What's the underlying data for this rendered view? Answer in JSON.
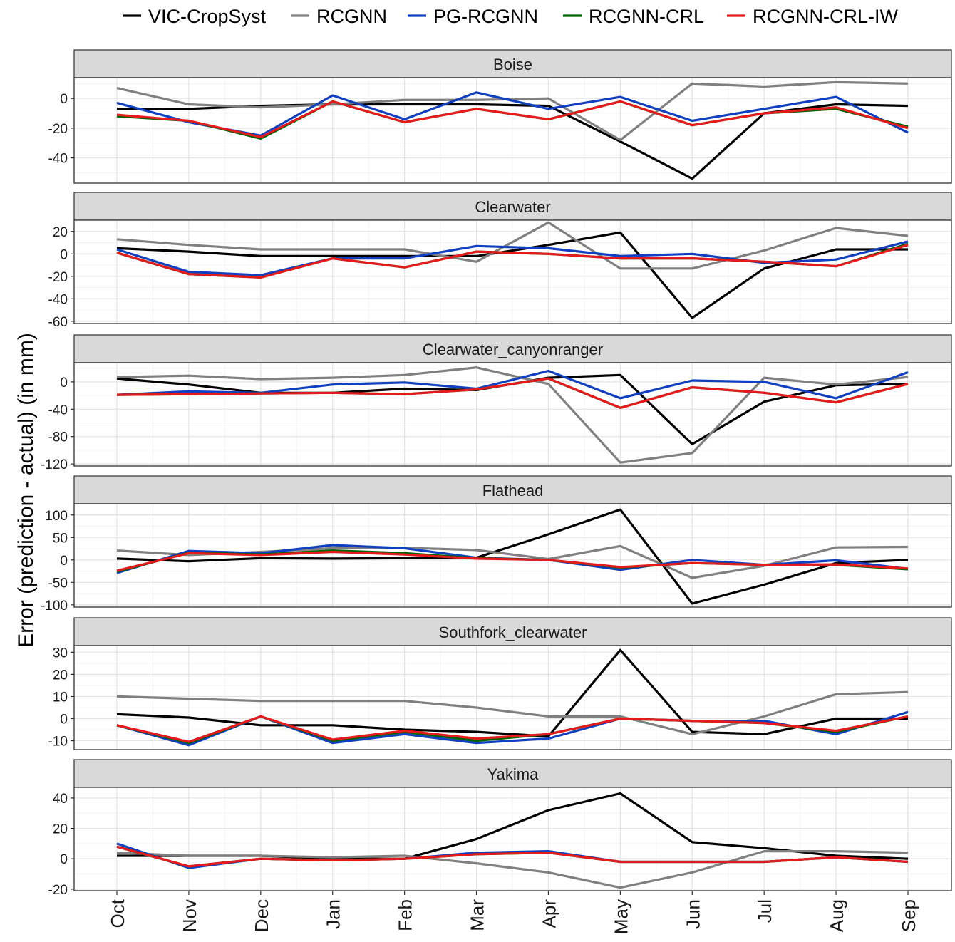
{
  "chart_data": {
    "type": "line",
    "ylabel": "Error (prediction - actual) (in mm)",
    "xlabel": "",
    "categories": [
      "Oct",
      "Nov",
      "Dec",
      "Jan",
      "Feb",
      "Mar",
      "Apr",
      "May",
      "Jun",
      "Jul",
      "Aug",
      "Sep"
    ],
    "legend": {
      "position": "top",
      "entries": [
        {
          "name": "VIC-CropSyst",
          "color": "#000000"
        },
        {
          "name": "RCGNN",
          "color": "#808080"
        },
        {
          "name": "PG-RCGNN",
          "color": "#1040c0"
        },
        {
          "name": "RCGNN-CRL",
          "color": "#006400"
        },
        {
          "name": "RCGNN-CRL-IW",
          "color": "#e41a1c"
        }
      ]
    },
    "panels": [
      {
        "title": "Boise",
        "ylim": [
          -57,
          14
        ],
        "yticks": [
          0,
          -20,
          -40
        ],
        "series": [
          {
            "name": "VIC-CropSyst",
            "values": [
              -7,
              -7,
              -5,
              -4,
              -4,
              -4,
              -5,
              -29,
              -54,
              -10,
              -4,
              -5
            ]
          },
          {
            "name": "RCGNN",
            "values": [
              7,
              -4,
              -6,
              -4,
              -1,
              -1,
              0,
              -28,
              10,
              8,
              11,
              10
            ]
          },
          {
            "name": "PG-RCGNN",
            "values": [
              -3,
              -16,
              -25,
              2,
              -14,
              4,
              -7,
              1,
              -15,
              -7,
              1,
              -23
            ]
          },
          {
            "name": "RCGNN-CRL",
            "values": [
              -12,
              -15,
              -27,
              -2,
              -16,
              -7,
              -14,
              -2,
              -18,
              -10,
              -7,
              -19
            ]
          },
          {
            "name": "RCGNN-CRL-IW",
            "values": [
              -11,
              -15,
              -26,
              -2,
              -16,
              -7,
              -14,
              -2,
              -18,
              -10,
              -6,
              -20
            ]
          }
        ]
      },
      {
        "title": "Clearwater",
        "ylim": [
          -62,
          30
        ],
        "yticks": [
          20,
          0,
          -20,
          -40,
          -60
        ],
        "series": [
          {
            "name": "VIC-CropSyst",
            "values": [
              5,
              2,
              -2,
              -2,
              -2,
              -2,
              8,
              19,
              -57,
              -13,
              4,
              4
            ]
          },
          {
            "name": "RCGNN",
            "values": [
              13,
              8,
              4,
              4,
              4,
              -7,
              28,
              -13,
              -13,
              3,
              23,
              16
            ]
          },
          {
            "name": "PG-RCGNN",
            "values": [
              4,
              -16,
              -19,
              -4,
              -4,
              7,
              5,
              -2,
              0,
              -8,
              -5,
              11
            ]
          },
          {
            "name": "RCGNN-CRL",
            "values": [
              1,
              -18,
              -21,
              -4,
              -12,
              2,
              0,
              -4,
              -4,
              -7,
              -11,
              9
            ]
          },
          {
            "name": "RCGNN-CRL-IW",
            "values": [
              1,
              -18,
              -21,
              -4,
              -12,
              2,
              0,
              -4,
              -4,
              -7,
              -11,
              8
            ]
          }
        ]
      },
      {
        "title": "Clearwater_canyonranger",
        "ylim": [
          -123,
          28
        ],
        "yticks": [
          0,
          -40,
          -80,
          -120
        ],
        "series": [
          {
            "name": "VIC-CropSyst",
            "values": [
              5,
              -4,
              -16,
              -16,
              -10,
              -12,
              6,
              10,
              -91,
              -29,
              -5,
              -3
            ]
          },
          {
            "name": "RCGNN",
            "values": [
              7,
              9,
              4,
              6,
              10,
              21,
              -3,
              -118,
              -104,
              6,
              -4,
              7
            ]
          },
          {
            "name": "PG-RCGNN",
            "values": [
              -19,
              -14,
              -16,
              -4,
              -1,
              -10,
              16,
              -24,
              2,
              0,
              -24,
              14
            ]
          },
          {
            "name": "RCGNN-CRL",
            "values": [
              -19,
              -18,
              -17,
              -16,
              -18,
              -11,
              5,
              -38,
              -8,
              -16,
              -30,
              -3
            ]
          },
          {
            "name": "RCGNN-CRL-IW",
            "values": [
              -19,
              -18,
              -17,
              -16,
              -18,
              -11,
              5,
              -38,
              -8,
              -16,
              -30,
              -3
            ]
          }
        ]
      },
      {
        "title": "Flathead",
        "ylim": [
          -105,
          125
        ],
        "yticks": [
          100,
          50,
          0,
          -50,
          -100
        ],
        "series": [
          {
            "name": "VIC-CropSyst",
            "values": [
              3,
              -3,
              4,
              3,
              4,
              5,
              57,
              112,
              -97,
              -55,
              -7,
              0
            ]
          },
          {
            "name": "RCGNN",
            "values": [
              21,
              11,
              18,
              26,
              27,
              22,
              2,
              31,
              -40,
              -13,
              28,
              29
            ]
          },
          {
            "name": "PG-RCGNN",
            "values": [
              -29,
              20,
              15,
              33,
              26,
              5,
              0,
              -22,
              0,
              -11,
              -1,
              -20
            ]
          },
          {
            "name": "RCGNN-CRL",
            "values": [
              -26,
              16,
              12,
              21,
              15,
              4,
              0,
              -17,
              -7,
              -11,
              -11,
              -21
            ]
          },
          {
            "name": "RCGNN-CRL-IW",
            "values": [
              -24,
              15,
              11,
              18,
              12,
              3,
              0,
              -16,
              -7,
              -11,
              -10,
              -19
            ]
          }
        ]
      },
      {
        "title": "Southfork_clearwater",
        "ylim": [
          -14,
          33
        ],
        "yticks": [
          30,
          20,
          10,
          0,
          -10
        ],
        "series": [
          {
            "name": "VIC-CropSyst",
            "values": [
              2,
              0.5,
              -3,
              -3,
              -5,
              -6,
              -8,
              31,
              -6,
              -7,
              0,
              0
            ]
          },
          {
            "name": "RCGNN",
            "values": [
              10,
              9,
              8,
              8,
              8,
              5,
              1,
              1,
              -7,
              1,
              11,
              12
            ]
          },
          {
            "name": "PG-RCGNN",
            "values": [
              -3,
              -12,
              1,
              -11,
              -7,
              -11,
              -9,
              0,
              -1,
              -1,
              -7,
              3
            ]
          },
          {
            "name": "RCGNN-CRL",
            "values": [
              -3,
              -11,
              1,
              -10,
              -6,
              -10,
              -7,
              0,
              -1,
              -2,
              -6,
              1
            ]
          },
          {
            "name": "RCGNN-CRL-IW",
            "values": [
              -3,
              -10.5,
              1,
              -9.5,
              -5.5,
              -9,
              -7,
              0,
              -1,
              -2,
              -5.5,
              1
            ]
          }
        ]
      },
      {
        "title": "Yakima",
        "ylim": [
          -21,
          47
        ],
        "yticks": [
          40,
          20,
          0,
          -20
        ],
        "series": [
          {
            "name": "VIC-CropSyst",
            "values": [
              2,
              2,
              2,
              0,
              0,
              13,
              32,
              43,
              11,
              7,
              2,
              0
            ]
          },
          {
            "name": "RCGNN",
            "values": [
              4,
              2,
              2,
              1,
              2,
              -3,
              -9,
              -19,
              -9,
              5,
              5,
              4
            ]
          },
          {
            "name": "PG-RCGNN",
            "values": [
              10,
              -6,
              0,
              -1,
              0,
              4,
              5,
              -2,
              -2,
              -2,
              1,
              -2
            ]
          },
          {
            "name": "RCGNN-CRL",
            "values": [
              8,
              -5,
              0,
              -1,
              0,
              3,
              4,
              -2,
              -2,
              -2,
              1,
              -2
            ]
          },
          {
            "name": "RCGNN-CRL-IW",
            "values": [
              8,
              -5,
              0,
              -1,
              0,
              3,
              4,
              -2,
              -2,
              -2,
              1,
              -2
            ]
          }
        ]
      }
    ]
  }
}
